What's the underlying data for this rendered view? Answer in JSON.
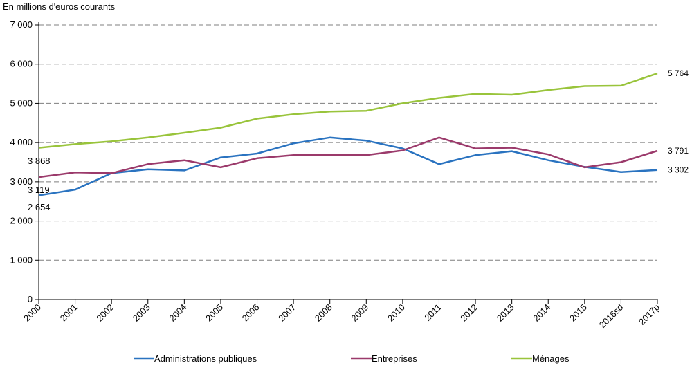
{
  "chart_data": {
    "type": "line",
    "unit_label": "En millions d'euros courants",
    "categories": [
      "2000",
      "2001",
      "2002",
      "2003",
      "2004",
      "2005",
      "2006",
      "2007",
      "2008",
      "2009",
      "2010",
      "2011",
      "2012",
      "2013",
      "2014",
      "2015",
      "2016sd",
      "2017p"
    ],
    "ylim": [
      0,
      7000
    ],
    "yticks": [
      0,
      1000,
      2000,
      3000,
      4000,
      5000,
      6000,
      7000
    ],
    "ytick_labels": [
      "0",
      "1 000",
      "2 000",
      "3 000",
      "4 000",
      "5 000",
      "6 000",
      "7 000"
    ],
    "grid": true,
    "legend_position": "bottom",
    "series": [
      {
        "name": "Administrations publiques",
        "color": "#2a73c0",
        "values": [
          2654,
          2800,
          3220,
          3320,
          3290,
          3620,
          3720,
          3980,
          4130,
          4050,
          3850,
          3450,
          3680,
          3780,
          3550,
          3380,
          3250,
          3302
        ],
        "start_label": "2 654",
        "end_label": "3 302"
      },
      {
        "name": "Entreprises",
        "color": "#9b3a6b",
        "values": [
          3119,
          3240,
          3220,
          3450,
          3550,
          3370,
          3600,
          3680,
          3680,
          3680,
          3800,
          4130,
          3850,
          3870,
          3700,
          3370,
          3500,
          3791
        ],
        "start_label": "3 119",
        "end_label": "3 791"
      },
      {
        "name": "Ménages",
        "color": "#99c43b",
        "values": [
          3868,
          3960,
          4030,
          4130,
          4250,
          4380,
          4610,
          4720,
          4790,
          4810,
          5000,
          5140,
          5240,
          5220,
          5340,
          5440,
          5450,
          5764
        ],
        "start_label": "3 868",
        "end_label": "5 764"
      }
    ]
  }
}
